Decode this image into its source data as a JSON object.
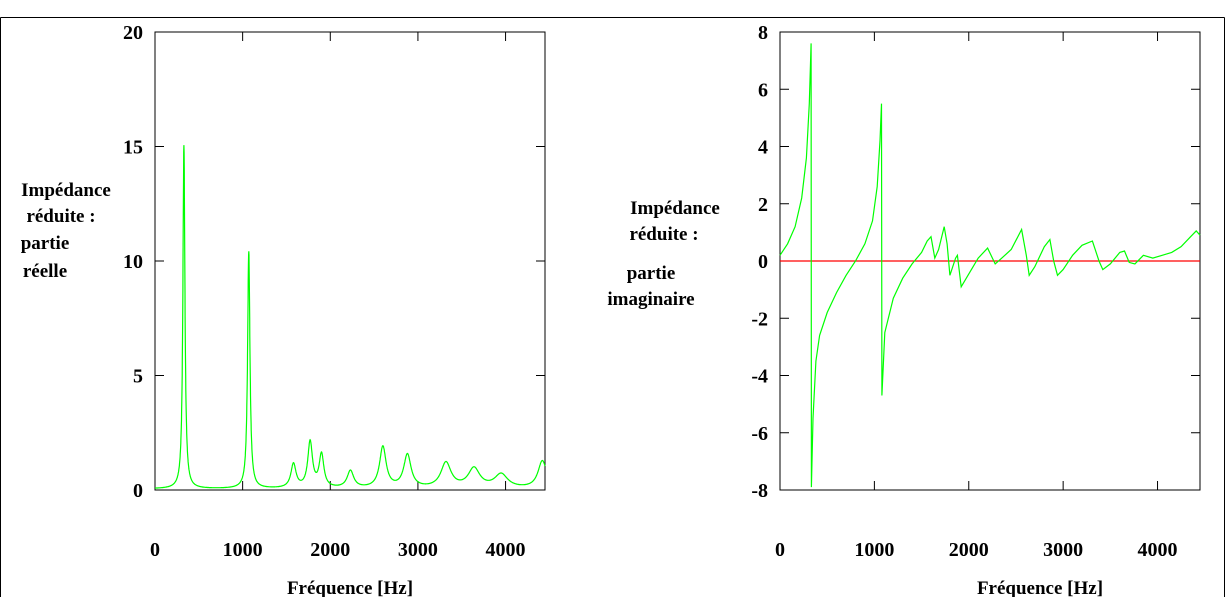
{
  "chart_data": [
    {
      "type": "line",
      "xlabel": "Fréquence [Hz]",
      "ylabel": [
        "Impédance",
        "réduite :",
        "partie",
        "réelle"
      ],
      "xlim": [
        0,
        4450
      ],
      "ylim": [
        0,
        20
      ],
      "xticks": [
        0,
        1000,
        2000,
        3000,
        4000
      ],
      "yticks": [
        0,
        5,
        10,
        15,
        20
      ],
      "line_color": "#00ff00",
      "grid": false,
      "peaks": [
        {
          "f": 330,
          "a": 15.0,
          "w": 14
        },
        {
          "f": 1070,
          "a": 10.35,
          "w": 16
        },
        {
          "f": 1580,
          "a": 1.05,
          "w": 35
        },
        {
          "f": 1770,
          "a": 2.0,
          "w": 32
        },
        {
          "f": 1900,
          "a": 1.45,
          "w": 32
        },
        {
          "f": 2230,
          "a": 0.75,
          "w": 45
        },
        {
          "f": 2600,
          "a": 1.8,
          "w": 45
        },
        {
          "f": 2880,
          "a": 1.45,
          "w": 50
        },
        {
          "f": 3320,
          "a": 1.1,
          "w": 70
        },
        {
          "f": 3640,
          "a": 0.85,
          "w": 80
        },
        {
          "f": 3950,
          "a": 0.6,
          "w": 90
        },
        {
          "f": 4420,
          "a": 1.2,
          "w": 60
        }
      ],
      "baseline": 0.05
    },
    {
      "type": "line",
      "xlabel": "Fréquence [Hz]",
      "ylabel": [
        "Impédance",
        "réduite :",
        "partie",
        "imaginaire"
      ],
      "xlim": [
        0,
        4450
      ],
      "ylim": [
        -8,
        8
      ],
      "xticks": [
        0,
        1000,
        2000,
        3000,
        4000
      ],
      "yticks": [
        -8,
        -6,
        -4,
        -2,
        0,
        2,
        4,
        6,
        8
      ],
      "line_color": "#00ff00",
      "zero_line_color": "#ff0000",
      "grid": false,
      "points": [
        [
          0,
          0.2
        ],
        [
          80,
          0.6
        ],
        [
          160,
          1.2
        ],
        [
          230,
          2.2
        ],
        [
          280,
          3.6
        ],
        [
          310,
          5.5
        ],
        [
          330,
          7.6
        ],
        [
          333,
          -7.9
        ],
        [
          350,
          -5.5
        ],
        [
          380,
          -3.5
        ],
        [
          420,
          -2.6
        ],
        [
          500,
          -1.8
        ],
        [
          600,
          -1.1
        ],
        [
          700,
          -0.5
        ],
        [
          800,
          0.0
        ],
        [
          900,
          0.6
        ],
        [
          980,
          1.4
        ],
        [
          1030,
          2.6
        ],
        [
          1060,
          4.2
        ],
        [
          1075,
          5.5
        ],
        [
          1080,
          -4.7
        ],
        [
          1110,
          -2.5
        ],
        [
          1200,
          -1.3
        ],
        [
          1300,
          -0.6
        ],
        [
          1400,
          -0.1
        ],
        [
          1500,
          0.3
        ],
        [
          1560,
          0.7
        ],
        [
          1600,
          0.85
        ],
        [
          1640,
          0.1
        ],
        [
          1680,
          0.4
        ],
        [
          1740,
          1.2
        ],
        [
          1770,
          0.6
        ],
        [
          1800,
          -0.5
        ],
        [
          1860,
          0.1
        ],
        [
          1880,
          0.2
        ],
        [
          1920,
          -0.9
        ],
        [
          2000,
          -0.45
        ],
        [
          2100,
          0.1
        ],
        [
          2200,
          0.45
        ],
        [
          2250,
          0.1
        ],
        [
          2280,
          -0.1
        ],
        [
          2350,
          0.1
        ],
        [
          2450,
          0.4
        ],
        [
          2560,
          1.1
        ],
        [
          2610,
          0.2
        ],
        [
          2640,
          -0.5
        ],
        [
          2700,
          -0.2
        ],
        [
          2800,
          0.5
        ],
        [
          2860,
          0.75
        ],
        [
          2900,
          0.0
        ],
        [
          2940,
          -0.5
        ],
        [
          3000,
          -0.3
        ],
        [
          3100,
          0.2
        ],
        [
          3200,
          0.55
        ],
        [
          3310,
          0.7
        ],
        [
          3380,
          0.0
        ],
        [
          3420,
          -0.3
        ],
        [
          3500,
          -0.1
        ],
        [
          3600,
          0.3
        ],
        [
          3650,
          0.35
        ],
        [
          3700,
          -0.05
        ],
        [
          3760,
          -0.1
        ],
        [
          3850,
          0.2
        ],
        [
          3950,
          0.1
        ],
        [
          4050,
          0.2
        ],
        [
          4150,
          0.3
        ],
        [
          4250,
          0.5
        ],
        [
          4350,
          0.85
        ],
        [
          4410,
          1.05
        ],
        [
          4450,
          0.9
        ]
      ]
    }
  ]
}
